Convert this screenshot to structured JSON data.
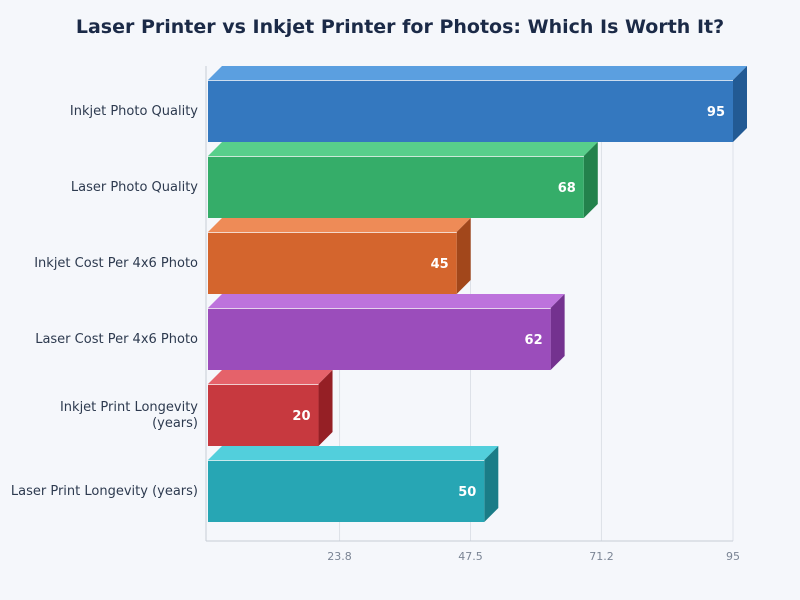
{
  "chart_data": {
    "type": "bar",
    "orientation": "horizontal",
    "title": "Laser Printer vs Inkjet Printer for Photos: Which Is Worth It?",
    "xlabel": "",
    "ylabel": "",
    "categories": [
      "Inkjet Photo Quality",
      "Laser Photo Quality",
      "Inkjet Cost Per 4x6 Photo",
      "Laser Cost Per 4x6 Photo",
      "Inkjet Print Longevity (years)",
      "Laser Print Longevity (years)"
    ],
    "values": [
      95,
      68,
      45,
      62,
      20,
      50
    ],
    "xlim": [
      0,
      95
    ],
    "xticks": [
      "23.8",
      "47.5",
      "71.2",
      "95"
    ],
    "grid": true,
    "legend": "none",
    "colors": [
      "#3478bf",
      "#35ad69",
      "#d4652d",
      "#9b4dbb",
      "#c7393f",
      "#27a6b4"
    ]
  },
  "bars": [
    {
      "label_lines": [
        "Inkjet Photo Quality"
      ],
      "value": 95,
      "value_label": "95",
      "front": "#3478bf",
      "top": "#5b9fe0",
      "side": "#225a94"
    },
    {
      "label_lines": [
        "Laser Photo Quality"
      ],
      "value": 68,
      "value_label": "68",
      "front": "#35ad69",
      "top": "#58cf8b",
      "side": "#23824c"
    },
    {
      "label_lines": [
        "Inkjet Cost Per 4x6 Photo"
      ],
      "value": 45,
      "value_label": "45",
      "front": "#d4652d",
      "top": "#ee8b57",
      "side": "#a2471b"
    },
    {
      "label_lines": [
        "Laser Cost Per 4x6 Photo"
      ],
      "value": 62,
      "value_label": "62",
      "front": "#9b4dbb",
      "top": "#bd73dc",
      "side": "#74328f"
    },
    {
      "label_lines": [
        "Inkjet Print Longevity",
        "(years)"
      ],
      "value": 20,
      "value_label": "20",
      "front": "#c7393f",
      "top": "#e5626a",
      "side": "#951f25"
    },
    {
      "label_lines": [
        "Laser Print Longevity (years)"
      ],
      "value": 50,
      "value_label": "50",
      "front": "#27a6b4",
      "top": "#52cfdc",
      "side": "#1a7c87"
    }
  ],
  "axis": {
    "ticks": [
      {
        "value": 23.8,
        "label": "23.8"
      },
      {
        "value": 47.5,
        "label": "47.5"
      },
      {
        "value": 71.2,
        "label": "71.2"
      },
      {
        "value": 95,
        "label": "95"
      }
    ]
  }
}
